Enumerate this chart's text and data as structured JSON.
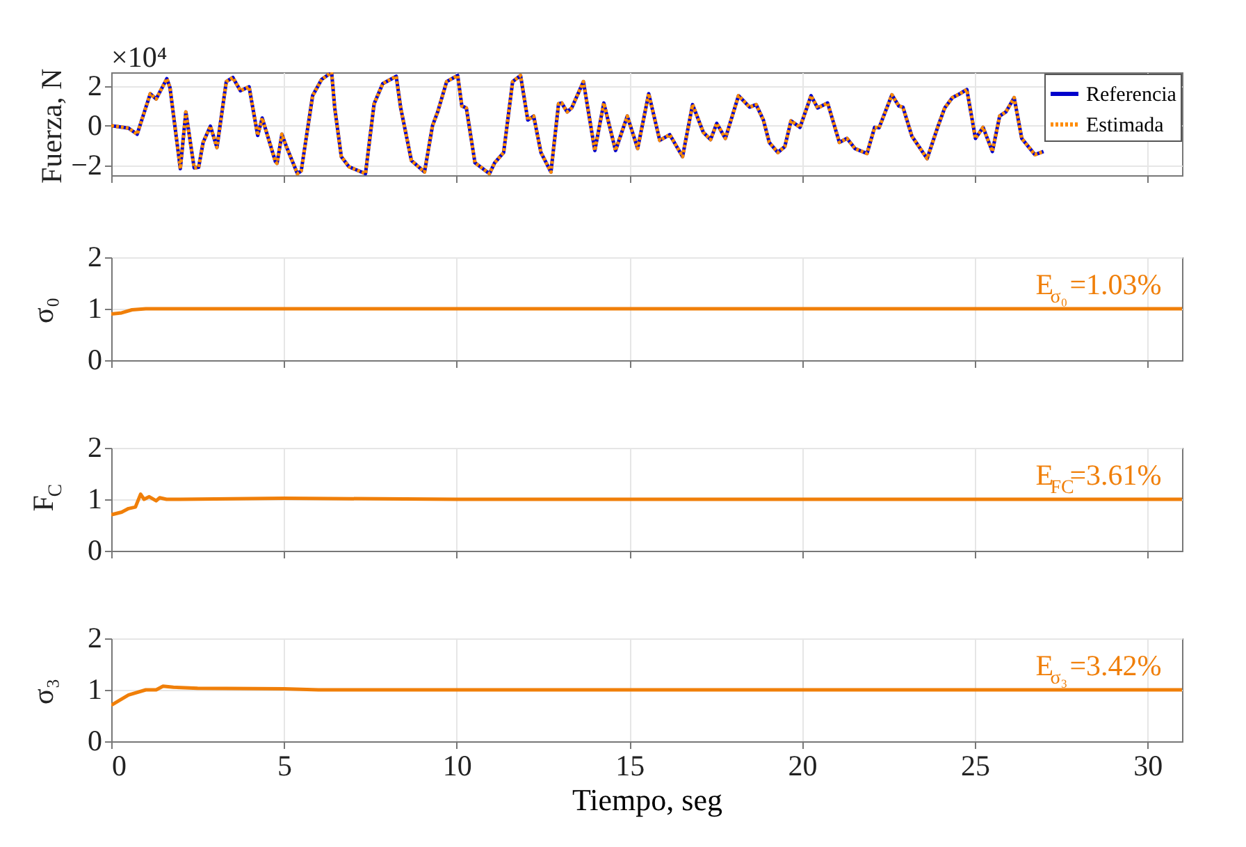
{
  "chart_data": [
    {
      "type": "line",
      "ylabel": "Fuerza, N",
      "annotations": [
        "×10⁴"
      ],
      "xlim": [
        0,
        31
      ],
      "xticks": [
        0,
        5,
        10,
        15,
        20,
        25,
        30
      ],
      "ylim": [
        -2.5,
        2.7
      ],
      "yticks": [
        -2,
        0,
        2
      ],
      "grid": true,
      "legend": "top right",
      "tick_labels": "y",
      "x": [
        0,
        0.5,
        0.75,
        1.13,
        1.3,
        1.61,
        1.7,
        2.0,
        2.16,
        2.4,
        2.53,
        2.66,
        2.87,
        3.06,
        3.33,
        3.52,
        3.74,
        3.99,
        4.24,
        4.37,
        4.75,
        4.8,
        4.94,
        5.07,
        5.39,
        5.5,
        5.83,
        6.09,
        6.38,
        6.47,
        6.66,
        6.88,
        7.36,
        7.61,
        7.86,
        8.25,
        8.38,
        8.69,
        9.07,
        9.3,
        9.45,
        9.71,
        10.03,
        10.15,
        10.28,
        10.53,
        10.95,
        11.1,
        11.36,
        11.62,
        11.85,
        12.06,
        12.23,
        12.44,
        12.73,
        12.95,
        13.04,
        13.2,
        13.33,
        13.67,
        14.0,
        14.26,
        14.6,
        14.94,
        15.24,
        15.56,
        15.88,
        16.17,
        16.54,
        16.83,
        17.14,
        17.35,
        17.53,
        17.78,
        18.16,
        18.48,
        18.67,
        18.88,
        19.05,
        19.3,
        19.5,
        19.68,
        19.94,
        20.26,
        20.45,
        20.74,
        21.08,
        21.3,
        21.53,
        21.88,
        22.1,
        22.23,
        22.6,
        22.8,
        22.92,
        23.18,
        23.62,
        23.94,
        24.13,
        24.35,
        24.57,
        24.77,
        25.02,
        25.24,
        25.51,
        25.72,
        25.9,
        26.14,
        26.36,
        26.74,
        26.99
      ],
      "series": [
        {
          "name": "Referencia",
          "color": "#0000cc",
          "line_style": "solid",
          "values": [
            0,
            -0.12,
            -0.43,
            1.62,
            1.35,
            2.38,
            1.93,
            -2.17,
            0.7,
            -2.13,
            -2.1,
            -0.84,
            -0.02,
            -1.1,
            2.23,
            2.44,
            1.77,
            1.97,
            -0.49,
            0.39,
            -1.8,
            -1.9,
            -0.43,
            -1.05,
            -2.42,
            -2.28,
            1.52,
            2.34,
            2.7,
            0.9,
            -1.56,
            -2.07,
            -2.42,
            1.11,
            2.13,
            2.5,
            0.9,
            -1.76,
            -2.34,
            0,
            0.7,
            2.23,
            2.54,
            1.0,
            0.9,
            -1.87,
            -2.42,
            -1.87,
            -1.35,
            2.23,
            2.54,
            0.29,
            0.49,
            -1.35,
            -2.34,
            1.11,
            1.15,
            0.7,
            0.9,
            2.23,
            -1.25,
            1.15,
            -1.25,
            0.49,
            -1.15,
            1.62,
            -0.74,
            -0.45,
            -1.56,
            1.07,
            -0.33,
            -0.7,
            0.12,
            -0.64,
            1.52,
            0.94,
            1.07,
            0.29,
            -0.84,
            -1.35,
            -1.05,
            0.25,
            -0.08,
            1.52,
            0.9,
            1.15,
            -0.84,
            -0.64,
            -1.15,
            -1.4,
            -0.08,
            -0.1,
            1.56,
            1.0,
            0.94,
            -0.53,
            -1.66,
            0,
            0.9,
            1.42,
            1.62,
            1.83,
            -0.64,
            -0.08,
            -1.3,
            0.49,
            0.7,
            1.42,
            -0.64,
            -1.46,
            -1.3
          ]
        },
        {
          "name": "Estimada",
          "color": "#ff8c00",
          "line_style": "dotted",
          "values": [
            0,
            -0.12,
            -0.43,
            1.62,
            1.35,
            2.38,
            1.93,
            -2.17,
            0.7,
            -2.13,
            -2.1,
            -0.84,
            -0.02,
            -1.1,
            2.23,
            2.44,
            1.77,
            1.97,
            -0.49,
            0.39,
            -1.8,
            -1.9,
            -0.43,
            -1.05,
            -2.42,
            -2.28,
            1.52,
            2.34,
            2.7,
            0.9,
            -1.56,
            -2.07,
            -2.42,
            1.11,
            2.13,
            2.5,
            0.9,
            -1.76,
            -2.34,
            0,
            0.7,
            2.23,
            2.54,
            1.0,
            0.9,
            -1.87,
            -2.42,
            -1.87,
            -1.35,
            2.23,
            2.54,
            0.29,
            0.49,
            -1.35,
            -2.34,
            1.11,
            1.15,
            0.7,
            0.9,
            2.23,
            -1.25,
            1.15,
            -1.25,
            0.49,
            -1.15,
            1.62,
            -0.74,
            -0.45,
            -1.56,
            1.07,
            -0.33,
            -0.7,
            0.12,
            -0.64,
            1.52,
            0.94,
            1.07,
            0.29,
            -0.84,
            -1.35,
            -1.05,
            0.25,
            -0.08,
            1.52,
            0.9,
            1.15,
            -0.84,
            -0.64,
            -1.15,
            -1.4,
            -0.08,
            -0.1,
            1.56,
            1.0,
            0.94,
            -0.53,
            -1.66,
            0,
            0.9,
            1.42,
            1.62,
            1.83,
            -0.64,
            -0.08,
            -1.3,
            0.49,
            0.7,
            1.42,
            -0.64,
            -1.46,
            -1.3
          ]
        }
      ]
    },
    {
      "type": "line",
      "ylabel": "σ₀",
      "annotations": [
        "E$_{σ₀}$=1.03%"
      ],
      "xlim": [
        0,
        31
      ],
      "xticks": [
        0,
        5,
        10,
        15,
        20,
        25,
        30
      ],
      "ylim": [
        0,
        2
      ],
      "yticks": [
        0,
        1,
        2
      ],
      "grid": true,
      "tick_labels": "y",
      "x": [
        0,
        0.3,
        0.6,
        1,
        31
      ],
      "series": [
        {
          "color": "#f07f09",
          "line_style": "solid",
          "values": [
            0.9,
            0.92,
            0.98,
            1.0,
            1.0
          ]
        }
      ]
    },
    {
      "type": "line",
      "ylabel": "F$_{C}$",
      "annotations": [
        "E$_{FC}$=3.61%"
      ],
      "xlim": [
        0,
        31
      ],
      "xticks": [
        0,
        5,
        10,
        15,
        20,
        25,
        30
      ],
      "ylim": [
        0,
        2
      ],
      "yticks": [
        0,
        1,
        2
      ],
      "grid": true,
      "tick_labels": "y",
      "x": [
        0,
        0.3,
        0.5,
        0.7,
        0.85,
        0.95,
        1.1,
        1.3,
        1.4,
        1.6,
        2,
        5,
        10,
        31
      ],
      "series": [
        {
          "color": "#f07f09",
          "line_style": "solid",
          "values": [
            0.7,
            0.75,
            0.82,
            0.85,
            1.1,
            1.0,
            1.05,
            0.97,
            1.03,
            1.0,
            1.0,
            1.02,
            1.0,
            1.0
          ]
        }
      ]
    },
    {
      "type": "line",
      "ylabel": "σ₃",
      "xlabel": "Tiempo, seg",
      "annotations": [
        "E$_{σ₃}$=3.42%"
      ],
      "xlim": [
        0,
        31
      ],
      "xticks": [
        0,
        5,
        10,
        15,
        20,
        25,
        30
      ],
      "ylim": [
        0,
        2
      ],
      "yticks": [
        0,
        1,
        2
      ],
      "grid": true,
      "x": [
        0,
        0.5,
        1,
        1.3,
        1.5,
        1.8,
        2.5,
        5,
        6,
        31
      ],
      "series": [
        {
          "color": "#f07f09",
          "line_style": "solid",
          "values": [
            0.7,
            0.9,
            1.0,
            1.0,
            1.07,
            1.05,
            1.03,
            1.02,
            1.0,
            1.0
          ]
        }
      ]
    }
  ]
}
